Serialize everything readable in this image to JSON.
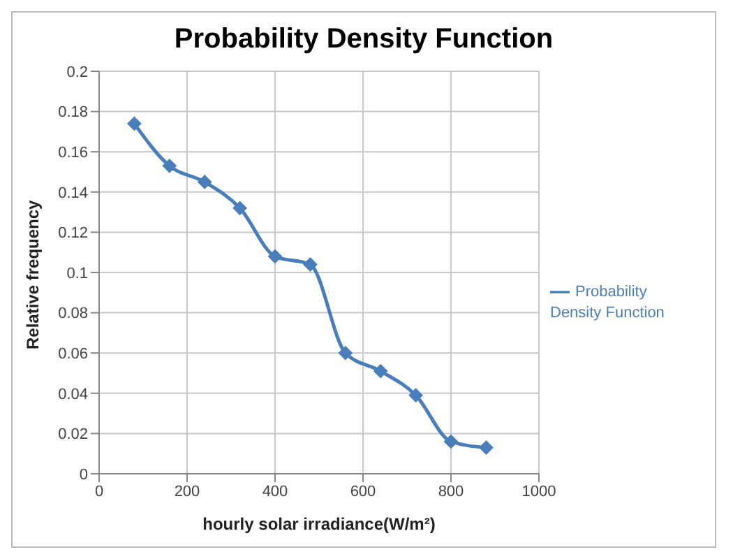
{
  "chart_data": {
    "type": "line",
    "title": "Probability Density Function",
    "xlabel": "hourly solar irradiance(W/m²)",
    "ylabel": "Relative frequency",
    "x": [
      80,
      160,
      240,
      320,
      400,
      480,
      560,
      640,
      720,
      800,
      880
    ],
    "series": [
      {
        "name": "Probability Density Function",
        "color": "#4a7ebb",
        "values": [
          0.174,
          0.153,
          0.145,
          0.132,
          0.108,
          0.104,
          0.06,
          0.051,
          0.039,
          0.016,
          0.013
        ]
      }
    ],
    "xlim": [
      0,
      1000
    ],
    "xticks": [
      0,
      200,
      400,
      600,
      800,
      1000
    ],
    "ylim": [
      0,
      0.2
    ],
    "yticks": [
      0,
      0.02,
      0.04,
      0.06,
      0.08,
      0.1,
      0.12,
      0.14,
      0.16,
      0.18,
      0.2
    ],
    "grid": true,
    "legend": "right",
    "marker": "diamond",
    "line_style": "solid"
  }
}
